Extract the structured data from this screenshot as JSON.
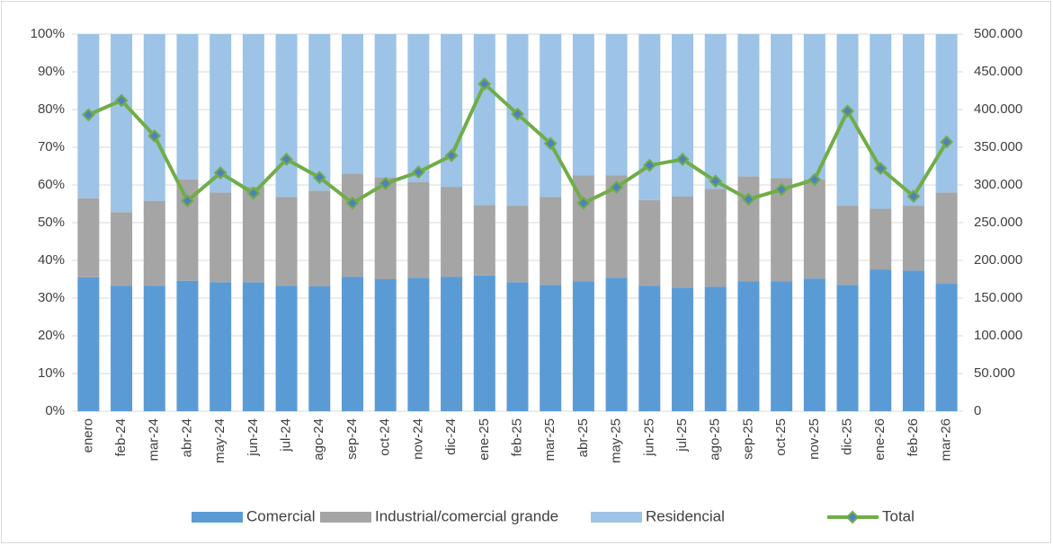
{
  "chart_data": {
    "type": "bar",
    "stacked": "percent",
    "categories": [
      "enero",
      "feb-24",
      "mar-24",
      "abr-24",
      "may-24",
      "jun-24",
      "jul-24",
      "ago-24",
      "sep-24",
      "oct-24",
      "nov-24",
      "dic-24",
      "ene-25",
      "feb-25",
      "mar-25",
      "abr-25",
      "may-25",
      "jun-25",
      "jul-25",
      "ago-25",
      "sep-25",
      "oct-25",
      "nov-25",
      "dic-25",
      "ene-26",
      "feb-26",
      "mar-26"
    ],
    "series": [
      {
        "name": "Comercial",
        "color": "#5b9bd5",
        "values": [
          35.5,
          33.3,
          33.3,
          34.6,
          34.2,
          34.2,
          33.3,
          33.1,
          35.6,
          35,
          35.4,
          35.6,
          36,
          34.2,
          33.5,
          34.4,
          35.4,
          33.3,
          32.8,
          33,
          34.4,
          34.4,
          35.2,
          33.5,
          37.6,
          37.3,
          33.8
        ]
      },
      {
        "name": "Industrial/comercial grande",
        "color": "#a5a5a5",
        "values": [
          21,
          19.5,
          22.5,
          26.9,
          23.8,
          25.3,
          23.5,
          25.4,
          27.4,
          27,
          25.4,
          23.9,
          18.7,
          20.3,
          23.3,
          28.1,
          27.1,
          22.7,
          24.2,
          26,
          27.9,
          27.4,
          26.3,
          21,
          16.1,
          17.2,
          24.2
        ]
      },
      {
        "name": "Residencial",
        "color": "#9dc3e6",
        "values": [
          43.5,
          47.2,
          44.2,
          38.5,
          42,
          40.5,
          43.2,
          41.5,
          37,
          38,
          39.2,
          40.5,
          45.3,
          45.5,
          43.2,
          37.5,
          37.5,
          44,
          43,
          41,
          37.7,
          38.2,
          38.5,
          45.5,
          46.3,
          45.5,
          42
        ]
      },
      {
        "name": "Total",
        "type": "line",
        "axis": "y2",
        "color": "#70ad47",
        "marker_color": "#4f81bd",
        "values": [
          393000,
          412000,
          365000,
          279000,
          316000,
          289000,
          334000,
          310000,
          276000,
          302000,
          317000,
          339000,
          434000,
          394000,
          355000,
          276000,
          297000,
          326000,
          334000,
          305000,
          281000,
          294000,
          307000,
          398000,
          322000,
          285000,
          357000
        ]
      }
    ],
    "ylim": [
      0,
      100
    ],
    "yticks": [
      {
        "value": 0,
        "label": "0%"
      },
      {
        "value": 10,
        "label": "10%"
      },
      {
        "value": 20,
        "label": "20%"
      },
      {
        "value": 30,
        "label": "30%"
      },
      {
        "value": 40,
        "label": "40%"
      },
      {
        "value": 50,
        "label": "50%"
      },
      {
        "value": 60,
        "label": "60%"
      },
      {
        "value": 70,
        "label": "70%"
      },
      {
        "value": 80,
        "label": "80%"
      },
      {
        "value": 90,
        "label": "90%"
      },
      {
        "value": 100,
        "label": "100%"
      }
    ],
    "y2lim": [
      0,
      500000
    ],
    "y2ticks": [
      0,
      {
        "value": 50000,
        "label": "50.000"
      },
      {
        "value": 100000,
        "label": "100.000"
      },
      {
        "value": 150000,
        "label": "150.000"
      },
      {
        "value": 200000,
        "label": "200.000"
      },
      {
        "value": 250000,
        "label": "250.000"
      },
      {
        "value": 300000,
        "label": "300.000"
      },
      {
        "value": 350000,
        "label": "350.000"
      },
      {
        "value": 400000,
        "label": "400.000"
      },
      {
        "value": 450000,
        "label": "450.000"
      },
      {
        "value": 500000,
        "label": "500.000"
      }
    ],
    "grid": true,
    "legend": "bottom"
  }
}
